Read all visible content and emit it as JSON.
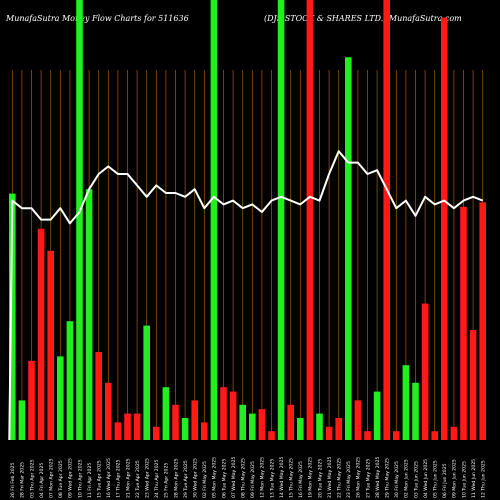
{
  "header": {
    "left_title": "MunafaSutra  Money Flow  Charts for 511636",
    "right_title": "(DJS STOCK & SHARES LTD.) MunafaSutra.com"
  },
  "colors": {
    "background": "#000000",
    "up_bar": "#22ee22",
    "down_bar": "#ff1a1a",
    "line": "#ffffff",
    "grid": "#8a5a00",
    "text": "#ffffff"
  },
  "chart_data": {
    "type": "bar",
    "grid": true,
    "categories": [
      "26 Fri Feb 2025",
      "28 Fri Mar 2025",
      "03 Thu Apr 2025",
      "04 Fri Apr 2025",
      "07 Mon Apr 2025",
      "08 Tue Apr 2025",
      "09 Wed Apr 2025",
      "10 Thu Apr 2025",
      "11 Fri Apr 2025",
      "15 Tue Apr 2025",
      "16 Wed Apr 2025",
      "17 Thu Apr 2025",
      "21 Mon Apr 2025",
      "22 Tue Apr 2025",
      "23 Wed Apr 2025",
      "24 Thu Apr 2025",
      "25 Fri Apr 2025",
      "28 Mon Apr 2025",
      "29 Tue Apr 2025",
      "30 Wed Apr 2025",
      "02 Fri May 2025",
      "05 Mon May 2025",
      "06 Tue May 2025",
      "07 Wed May 2025",
      "08 Thu May 2025",
      "09 Fri May 2025",
      "12 Mon May 2025",
      "13 Tue May 2025",
      "14 Wed May 2025",
      "15 Thu May 2025",
      "16 Fri May 2025",
      "19 Mon May 2025",
      "20 Tue May 2025",
      "21 Wed May 2025",
      "22 Thu May 2025",
      "23 Fri May 2025",
      "26 Mon May 2025",
      "27 Tue May 2025",
      "28 Wed May 2025",
      "29 Thu May 2025",
      "30 Fri May 2025",
      "02 Mon Jun 2025",
      "03 Tue Jun 2025",
      "04 Wed Jun 2025",
      "05 Thu Jun 2025",
      "06 Fri Jun 2025",
      "09 Mon Jun 2025",
      "10 Tue Jun 2025",
      "11 Wed Jun 2025",
      "12 Thu Jun 2025"
    ],
    "bar_colors": [
      "green",
      "green",
      "red",
      "red",
      "red",
      "green",
      "green",
      "green",
      "green",
      "red",
      "red",
      "red",
      "red",
      "red",
      "green",
      "red",
      "green",
      "red",
      "green",
      "red",
      "red",
      "green",
      "red",
      "red",
      "green",
      "green",
      "red",
      "red",
      "green",
      "red",
      "green",
      "red",
      "green",
      "red",
      "red",
      "green",
      "red",
      "red",
      "green",
      "red",
      "red",
      "green",
      "green",
      "red",
      "red",
      "red",
      "red",
      "red",
      "red",
      "red"
    ],
    "bar_values": [
      56,
      9,
      18,
      48,
      43,
      19,
      27,
      100,
      57,
      20,
      13,
      4,
      6,
      6,
      26,
      3,
      12,
      8,
      5,
      9,
      4,
      100,
      12,
      11,
      8,
      6,
      7,
      2,
      100,
      8,
      5,
      100,
      6,
      3,
      5,
      87,
      9,
      2,
      11,
      100,
      2,
      17,
      13,
      31,
      2,
      96,
      3,
      53,
      25,
      54
    ],
    "line_values": [
      63,
      61,
      61,
      58,
      58,
      61,
      57,
      60,
      66,
      70,
      72,
      70,
      70,
      67,
      64,
      67,
      65,
      65,
      64,
      66,
      61,
      64,
      62,
      63,
      61,
      62,
      60,
      63,
      64,
      63,
      62,
      64,
      63,
      70,
      76,
      73,
      73,
      70,
      71,
      66,
      61,
      63,
      59,
      64,
      62,
      63,
      61,
      63,
      64,
      63
    ]
  }
}
